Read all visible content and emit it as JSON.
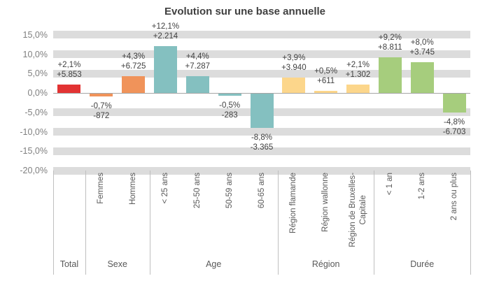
{
  "chart_data": {
    "type": "bar",
    "title": "Evolution sur une base annuelle",
    "xlabel": "",
    "ylabel": "",
    "y_axis": {
      "unit": "%",
      "min": -20,
      "max": 15,
      "tick_values": [
        15,
        10,
        5,
        0,
        -5,
        -10,
        -15,
        -20
      ],
      "tick_labels": [
        "15,0%",
        "10,0%",
        "5,0%",
        "0,0%",
        "-5,0%",
        "-10,0%",
        "-15,0%",
        "-20,0%"
      ]
    },
    "grid": "thick-band-major-gridlines",
    "legend": "none",
    "groups": [
      {
        "label": "Total",
        "color": "#e23333",
        "categories": [
          {
            "label_lines": [],
            "pct_label": "+2,1%",
            "abs_label": "+5.853",
            "value_pct": 2.1,
            "value_abs": 5853
          }
        ]
      },
      {
        "label": "Sexe",
        "color": "#f0935a",
        "categories": [
          {
            "label_lines": [
              "Femmes"
            ],
            "pct_label": "-0,7%",
            "abs_label": "-872",
            "value_pct": -0.7,
            "value_abs": -872
          },
          {
            "label_lines": [
              "Hommes"
            ],
            "pct_label": "+4,3%",
            "abs_label": "+6.725",
            "value_pct": 4.3,
            "value_abs": 6725
          }
        ]
      },
      {
        "label": "Age",
        "color": "#84c0c0",
        "categories": [
          {
            "label_lines": [
              "< 25 ans"
            ],
            "pct_label": "+12,1%",
            "abs_label": "+2.214",
            "value_pct": 12.1,
            "value_abs": 2214
          },
          {
            "label_lines": [
              "25-50 ans"
            ],
            "pct_label": "+4,4%",
            "abs_label": "+7.287",
            "value_pct": 4.4,
            "value_abs": 7287
          },
          {
            "label_lines": [
              "50-59 ans"
            ],
            "pct_label": "-0,5%",
            "abs_label": "-283",
            "value_pct": -0.5,
            "value_abs": -283
          },
          {
            "label_lines": [
              "60-65 ans"
            ],
            "pct_label": "-8,8%",
            "abs_label": "-3.365",
            "value_pct": -8.8,
            "value_abs": -3365
          }
        ]
      },
      {
        "label": "Région",
        "color": "#fcd68b",
        "categories": [
          {
            "label_lines": [
              "Région flamande"
            ],
            "pct_label": "+3,9%",
            "abs_label": "+3.940",
            "value_pct": 3.9,
            "value_abs": 3940
          },
          {
            "label_lines": [
              "Région wallonne"
            ],
            "pct_label": "+0,5%",
            "abs_label": "+611",
            "value_pct": 0.5,
            "value_abs": 611
          },
          {
            "label_lines": [
              "Région de Bruxelles-",
              "Capitale"
            ],
            "pct_label": "+2,1%",
            "abs_label": "+1.302",
            "value_pct": 2.1,
            "value_abs": 1302
          }
        ]
      },
      {
        "label": "Durée",
        "color": "#a6cd7d",
        "categories": [
          {
            "label_lines": [
              "< 1 an"
            ],
            "pct_label": "+9,2%",
            "abs_label": "+8.811",
            "value_pct": 9.2,
            "value_abs": 8811
          },
          {
            "label_lines": [
              "1-2 ans"
            ],
            "pct_label": "+8,0%",
            "abs_label": "+3.745",
            "value_pct": 8.0,
            "value_abs": 3745
          },
          {
            "label_lines": [
              "2 ans ou plus"
            ],
            "pct_label": "-4,8%",
            "abs_label": "-6.703",
            "value_pct": -4.8,
            "value_abs": -6703
          }
        ]
      }
    ],
    "colors": {
      "grid_band": "#dcdcdc",
      "zero_axis": "#a6a6a6",
      "tick_text": "#7f7f7f",
      "data_label_text": "#3f3f3f",
      "category_text": "#595959",
      "separator_line": "#bfbfbf",
      "title_text": "#404040"
    }
  }
}
